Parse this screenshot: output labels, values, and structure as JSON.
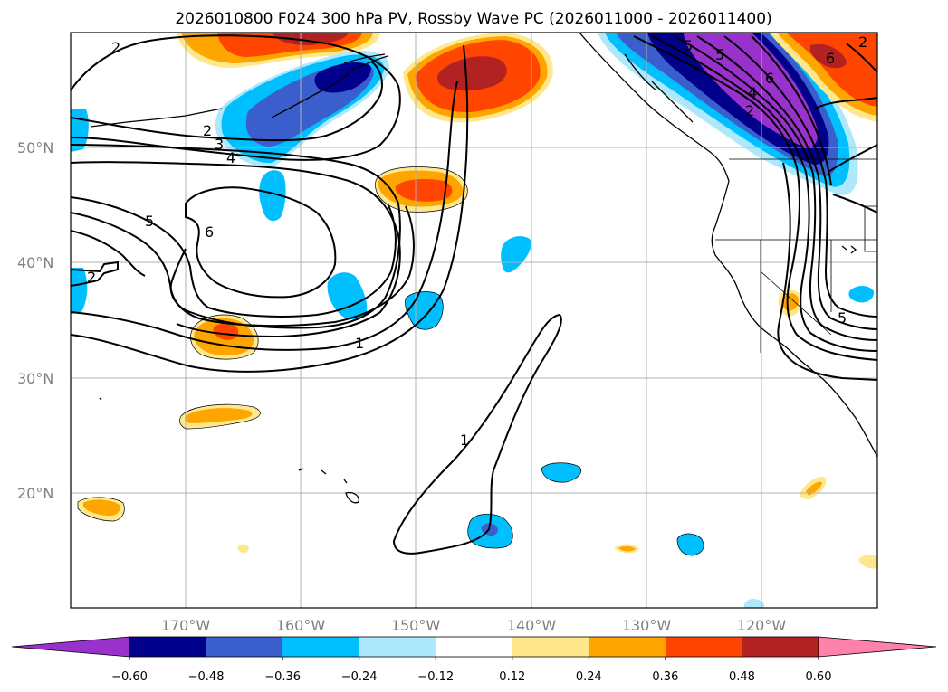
{
  "chart_data": {
    "type": "contour_map",
    "title": "2026010800 F024 300 hPa PV, Rossby Wave PC (2026011000 - 2026011400)",
    "lon_ticks": [
      "170°W",
      "160°W",
      "150°W",
      "140°W",
      "130°W",
      "120°W"
    ],
    "lat_ticks": [
      "50°N",
      "40°N",
      "30°N",
      "20°N"
    ],
    "lon_range": [
      -180,
      -110
    ],
    "lat_range": [
      10,
      60
    ],
    "pv_contour_levels": [
      1,
      2,
      3,
      4,
      5,
      6
    ],
    "pv_contour_labels": [
      "2",
      "2",
      "3",
      "4",
      "5",
      "6",
      "2",
      "1",
      "1",
      "5",
      "6",
      "4",
      "2",
      "5",
      "6",
      "2",
      "5"
    ],
    "colorbar": {
      "ticks": [
        "−0.60",
        "−0.48",
        "−0.36",
        "−0.24",
        "−0.12",
        "0.12",
        "0.24",
        "0.36",
        "0.48",
        "0.60"
      ],
      "colors": [
        "#9932cc",
        "#00008b",
        "#3a5fcd",
        "#00bfff",
        "#ade8fc",
        "#ffffff",
        "#ffe88c",
        "#ffa500",
        "#ff4500",
        "#b22222",
        "#ff82ab"
      ],
      "extend": "both"
    }
  }
}
